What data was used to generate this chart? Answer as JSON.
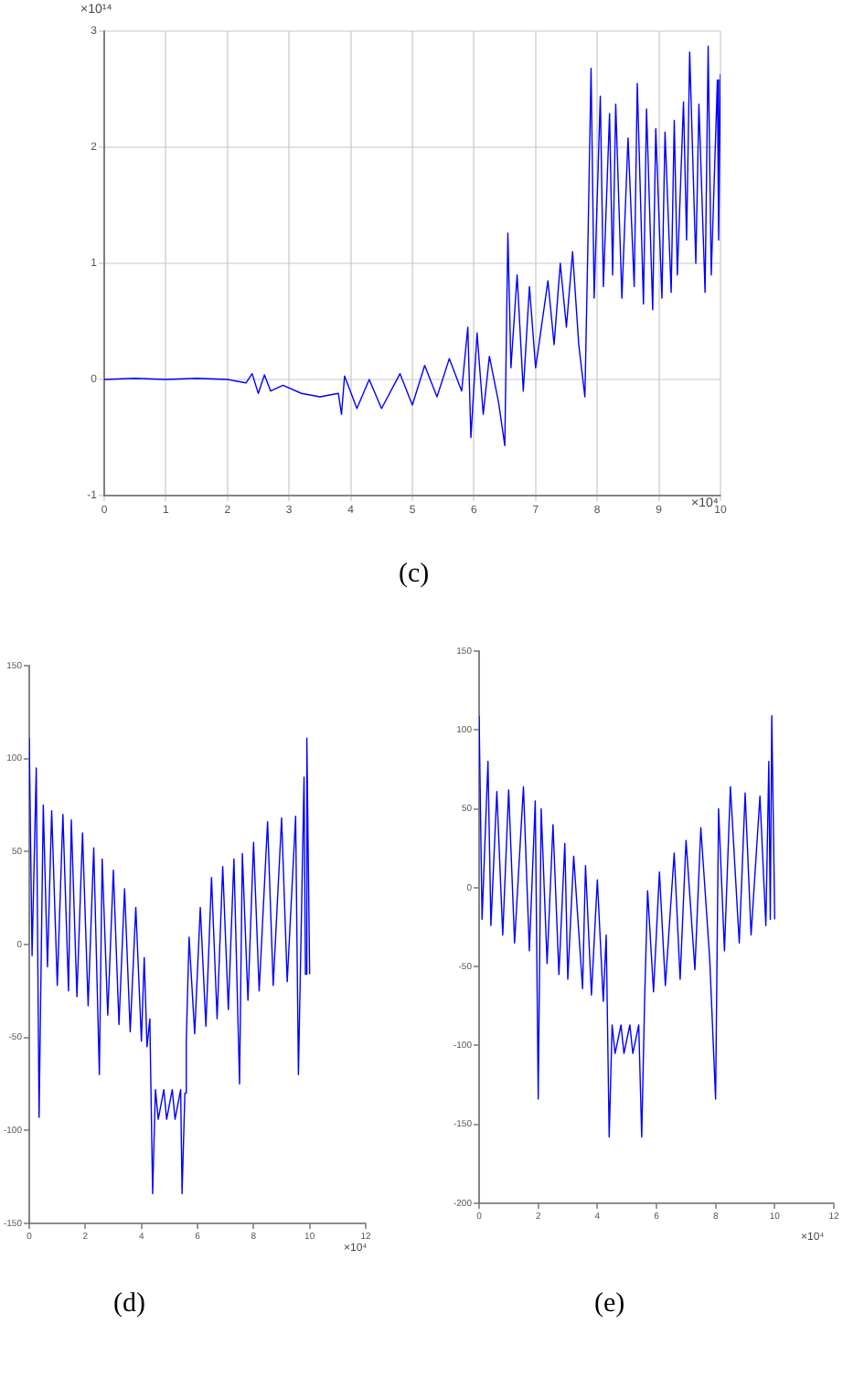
{
  "chart_data": [
    {
      "type": "line",
      "xlim": [
        0,
        10
      ],
      "xticks": [
        0,
        1,
        2,
        3,
        4,
        5,
        6,
        7,
        8,
        9,
        10
      ],
      "ylim": [
        -1,
        3
      ],
      "yticks": [
        -1,
        0,
        1,
        2,
        3
      ],
      "grid": true,
      "annotations": [
        "×10¹⁴",
        "×10⁴",
        "(c)"
      ],
      "x": [
        0,
        0.5,
        1,
        1.5,
        2,
        2.3,
        2.4,
        2.5,
        2.6,
        2.7,
        2.9,
        3.2,
        3.5,
        3.8,
        3.85,
        3.9,
        4.1,
        4.3,
        4.5,
        4.8,
        5.0,
        5.2,
        5.4,
        5.6,
        5.8,
        5.9,
        5.95,
        6.05,
        6.15,
        6.25,
        6.4,
        6.5,
        6.55,
        6.6,
        6.7,
        6.8,
        6.9,
        7.0,
        7.2,
        7.3,
        7.4,
        7.5,
        7.6,
        7.7,
        7.8,
        7.85,
        7.9,
        7.95,
        8.05,
        8.1,
        8.2,
        8.25,
        8.3,
        8.4,
        8.5,
        8.6,
        8.65,
        8.75,
        8.8,
        8.9,
        8.95,
        9.05,
        9.1,
        9.2,
        9.25,
        9.3,
        9.4,
        9.45,
        9.5,
        9.6,
        9.65,
        9.75,
        9.8,
        9.85,
        9.95,
        9.97,
        10
      ],
      "series": [
        {
          "color": "#0000ff",
          "values": [
            0,
            0.01,
            0,
            0.01,
            0,
            -0.03,
            0.05,
            -0.12,
            0.04,
            -0.1,
            -0.05,
            -0.12,
            -0.15,
            -0.12,
            -0.3,
            0.03,
            -0.25,
            0,
            -0.25,
            0.05,
            -0.22,
            0.12,
            -0.15,
            0.18,
            -0.1,
            0.45,
            -0.5,
            0.4,
            -0.3,
            0.2,
            -0.2,
            -0.57,
            1.26,
            0.1,
            0.9,
            -0.1,
            0.8,
            0.1,
            0.85,
            0.3,
            1.0,
            0.45,
            1.1,
            0.3,
            -0.15,
            1.2,
            2.68,
            0.7,
            2.44,
            0.8,
            2.29,
            0.9,
            2.37,
            0.7,
            2.08,
            0.8,
            2.55,
            0.65,
            2.33,
            0.6,
            2.16,
            0.7,
            2.13,
            0.75,
            2.23,
            0.9,
            2.39,
            1.2,
            2.82,
            1.0,
            2.37,
            0.75,
            2.87,
            0.9,
            2.58,
            1.2,
            2.63
          ]
        }
      ]
    },
    {
      "type": "line",
      "xlim": [
        0,
        12
      ],
      "xticks": [
        0,
        2,
        4,
        6,
        8,
        10,
        12
      ],
      "ylim": [
        -150,
        150
      ],
      "yticks": [
        -150,
        -100,
        -50,
        0,
        50,
        100,
        150
      ],
      "grid": false,
      "annotations": [
        "×10⁴",
        "(d)"
      ],
      "x": [
        0,
        0.1,
        0.25,
        0.35,
        0.5,
        0.65,
        0.8,
        1.0,
        1.2,
        1.4,
        1.5,
        1.7,
        1.9,
        2.1,
        2.3,
        2.5,
        2.6,
        2.8,
        3.0,
        3.2,
        3.4,
        3.6,
        3.8,
        4.0,
        4.1,
        4.2,
        4.3,
        4.4,
        4.5,
        4.6,
        4.8,
        4.9,
        5.1,
        5.2,
        5.4,
        5.45,
        5.55,
        5.6,
        5.7,
        5.9,
        6.1,
        6.3,
        6.5,
        6.7,
        6.9,
        7.1,
        7.3,
        7.5,
        7.6,
        7.8,
        8.0,
        8.2,
        8.5,
        8.7,
        9.0,
        9.2,
        9.5,
        9.6,
        9.8,
        9.85,
        9.9,
        10.0
      ],
      "series": [
        {
          "color": "#0000ff",
          "values": [
            111,
            -6,
            95,
            -93,
            75,
            -12,
            72,
            -22,
            70,
            -25,
            67,
            -28,
            60,
            -33,
            52,
            -70,
            46,
            -38,
            40,
            -43,
            30,
            -47,
            20,
            -52,
            -7,
            -55,
            -40,
            -134,
            -78,
            -94,
            -78,
            -94,
            -78,
            -94,
            -78,
            -134,
            -80,
            -52,
            4,
            -48,
            20,
            -44,
            36,
            -40,
            42,
            -35,
            46,
            -75,
            49,
            -30,
            55,
            -25,
            66,
            -22,
            68,
            -20,
            69,
            -70,
            90,
            -16,
            111,
            -16
          ]
        }
      ]
    },
    {
      "type": "line",
      "xlim": [
        0,
        12
      ],
      "xticks": [
        0,
        2,
        4,
        6,
        8,
        10,
        12
      ],
      "ylim": [
        -200,
        150
      ],
      "yticks": [
        -200,
        -150,
        -100,
        -50,
        0,
        50,
        100,
        150
      ],
      "grid": false,
      "annotations": [
        "×10⁴",
        "(e)"
      ],
      "x": [
        0,
        0.1,
        0.3,
        0.4,
        0.6,
        0.8,
        1.0,
        1.2,
        1.5,
        1.7,
        1.9,
        2.0,
        2.1,
        2.3,
        2.5,
        2.7,
        2.9,
        3.0,
        3.2,
        3.5,
        3.6,
        3.8,
        4.0,
        4.2,
        4.3,
        4.4,
        4.5,
        4.6,
        4.8,
        4.9,
        5.1,
        5.2,
        5.4,
        5.5,
        5.6,
        5.7,
        5.9,
        6.1,
        6.3,
        6.6,
        6.8,
        7.0,
        7.3,
        7.5,
        7.8,
        8.0,
        8.1,
        8.3,
        8.5,
        8.8,
        9.0,
        9.2,
        9.5,
        9.7,
        9.8,
        9.85,
        9.9,
        10.0
      ],
      "series": [
        {
          "color": "#0000ff",
          "values": [
            109,
            -20,
            80,
            -24,
            61,
            -30,
            62,
            -35,
            64,
            -40,
            55,
            -134,
            50,
            -48,
            40,
            -55,
            28,
            -58,
            20,
            -64,
            14,
            -68,
            5,
            -72,
            -30,
            -158,
            -87,
            -105,
            -87,
            -105,
            -87,
            -105,
            -87,
            -158,
            -70,
            -2,
            -66,
            10,
            -62,
            22,
            -58,
            30,
            -52,
            38,
            -45,
            -134,
            50,
            -40,
            64,
            -35,
            60,
            -30,
            58,
            -24,
            80,
            -20,
            109,
            -20
          ]
        }
      ]
    }
  ]
}
